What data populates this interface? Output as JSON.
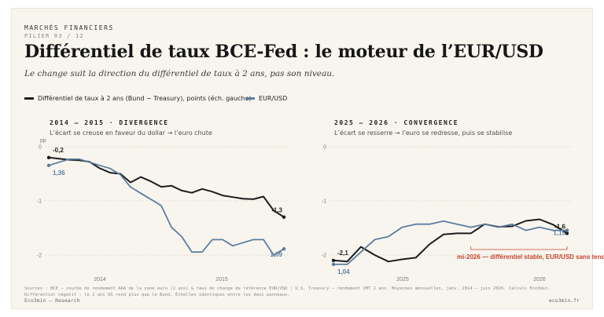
{
  "header": {
    "kicker": "MARCHÉS FINANCIERS",
    "pillar": "PILIER 03 / 12",
    "title": "Différentiel de taux BCE-Fed : le moteur de l’EUR/USD",
    "subtitle": "Le change suit la direction du différentiel de taux à 2 ans, pas son niveau."
  },
  "legend": {
    "spread_label": "Différentiel de taux à 2 ans (Bund − Treasury), points (éch. gauche)",
    "eurusd_label": "EUR/USD"
  },
  "colors": {
    "spread": "#1c1c1c",
    "eurusd": "#5b7ea0",
    "annotation": "#c4462f",
    "grid": "#d9d3c8"
  },
  "panels": {
    "p1": {
      "title": "2014 – 2015 · DIVERGENCE",
      "subtitle": "L’écart se creuse en faveur du dollar → l’euro chute"
    },
    "p2": {
      "title": "2025 – 2026 · CONVERGENCE",
      "subtitle": "L’écart se resserre → l’euro se redresse, puis se stabilise"
    }
  },
  "chart_data": [
    {
      "type": "line",
      "title": "2014 – 2015 · DIVERGENCE",
      "ylabel": "pp",
      "ylim": [
        -2.0,
        0.0
      ],
      "y_ticks": [
        0,
        -1,
        -2
      ],
      "x_range": [
        "2014-01",
        "2015-12"
      ],
      "x_tick_labels": [
        "2014",
        "2015"
      ],
      "grid": true,
      "series": [
        {
          "name": "Différentiel de taux à 2 ans (Bund − Treasury), points (éch. gauche)",
          "x": [
            "2014-01",
            "2014-02",
            "2014-03",
            "2014-04",
            "2014-05",
            "2014-06",
            "2014-07",
            "2014-08",
            "2014-09",
            "2014-10",
            "2014-11",
            "2014-12",
            "2015-01",
            "2015-02",
            "2015-03",
            "2015-04",
            "2015-05",
            "2015-06",
            "2015-07",
            "2015-08",
            "2015-09",
            "2015-10",
            "2015-11",
            "2015-12"
          ],
          "values": [
            -0.2,
            -0.22,
            -0.24,
            -0.25,
            -0.28,
            -0.4,
            -0.48,
            -0.5,
            -0.66,
            -0.56,
            -0.64,
            -0.74,
            -0.72,
            -0.81,
            -0.85,
            -0.78,
            -0.83,
            -0.9,
            -0.93,
            -0.96,
            -0.97,
            -0.92,
            -1.18,
            -1.3
          ],
          "end_label": "-1,3",
          "start_label": "-0,2"
        },
        {
          "name": "EUR/USD",
          "x": [
            "2014-01",
            "2014-02",
            "2014-03",
            "2014-04",
            "2014-05",
            "2014-06",
            "2014-07",
            "2014-08",
            "2014-09",
            "2014-10",
            "2014-11",
            "2014-12",
            "2015-01",
            "2015-02",
            "2015-03",
            "2015-04",
            "2015-05",
            "2015-06",
            "2015-07",
            "2015-08",
            "2015-09",
            "2015-10",
            "2015-11",
            "2015-12"
          ],
          "values": [
            1.36,
            1.37,
            1.38,
            1.38,
            1.37,
            1.36,
            1.35,
            1.33,
            1.29,
            1.27,
            1.25,
            1.23,
            1.16,
            1.13,
            1.08,
            1.08,
            1.12,
            1.12,
            1.1,
            1.11,
            1.12,
            1.12,
            1.07,
            1.09
          ],
          "start_label": "1,36",
          "end_label": "1,09"
        }
      ]
    },
    {
      "type": "line",
      "title": "2025 – 2026 · CONVERGENCE",
      "ylim": [
        -2.0,
        0.0
      ],
      "y_ticks": [
        0,
        -1,
        -2
      ],
      "x_range": [
        "2025-01",
        "2026-06"
      ],
      "x_tick_labels": [
        "2025",
        "2026"
      ],
      "grid": true,
      "series": [
        {
          "name": "Différentiel de taux à 2 ans (Bund − Treasury), points (éch. gauche)",
          "x": [
            "2025-01",
            "2025-02",
            "2025-03",
            "2025-04",
            "2025-05",
            "2025-06",
            "2025-07",
            "2025-08",
            "2025-09",
            "2025-10",
            "2025-11",
            "2025-12",
            "2026-01",
            "2026-02",
            "2026-03",
            "2026-04",
            "2026-05",
            "2026-06"
          ],
          "values": [
            -2.1,
            -2.12,
            -1.85,
            -2.0,
            -2.12,
            -2.08,
            -2.05,
            -1.8,
            -1.62,
            -1.6,
            -1.6,
            -1.43,
            -1.48,
            -1.47,
            -1.37,
            -1.34,
            -1.44,
            -1.6
          ],
          "start_label": "-2,1",
          "end_label": "-1,6"
        },
        {
          "name": "EUR/USD",
          "x": [
            "2025-01",
            "2025-02",
            "2025-03",
            "2025-04",
            "2025-05",
            "2025-06",
            "2025-07",
            "2025-08",
            "2025-09",
            "2025-10",
            "2025-11",
            "2025-12",
            "2026-01",
            "2026-02",
            "2026-03",
            "2026-04",
            "2026-05",
            "2026-06"
          ],
          "values": [
            1.04,
            1.04,
            1.08,
            1.12,
            1.13,
            1.16,
            1.17,
            1.17,
            1.18,
            1.17,
            1.16,
            1.17,
            1.16,
            1.17,
            1.15,
            1.16,
            1.15,
            1.15
          ],
          "start_label": "1,04",
          "end_label": "1,15"
        }
      ],
      "annotation": {
        "text": "mi-2026 — différentiel stable, EUR/USD sans tendance",
        "x_range": [
          "2025-11",
          "2026-06"
        ]
      }
    }
  ],
  "source": {
    "line1": "Sources : BCE — courbe de rendement AAA de la zone euro (2 ans) & taux de change de référence EUR/USD ; U.S. Treasury — rendement CMT 2 ans. Moyennes mensuelles, janv. 2014 – juin 2026. Calculs Eco3min.",
    "line2": "Différentiel négatif : le 2 ans US rend plus que le Bund. Échelles identiques entre les deux panneaux."
  },
  "footer": {
    "left": "Eco3min — Research",
    "right": "eco3min.fr"
  }
}
